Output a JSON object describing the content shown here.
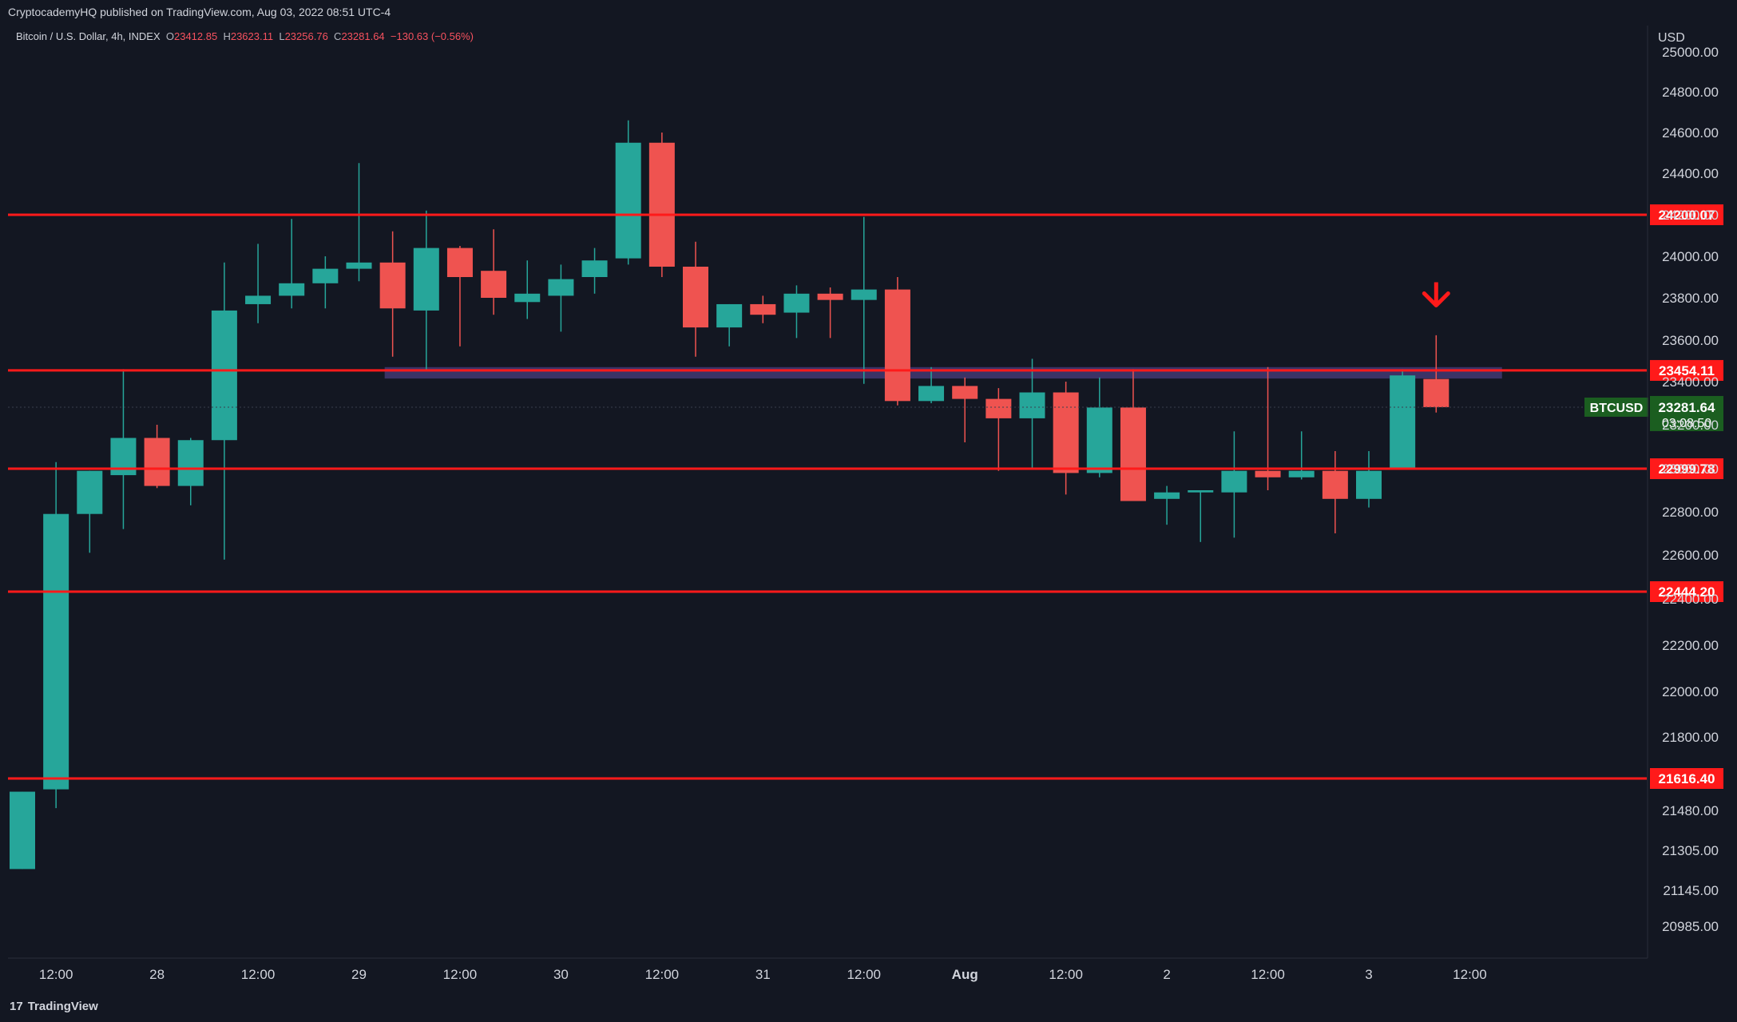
{
  "header": {
    "publisher_line": "CryptocademyHQ published on TradingView.com, Aug 03, 2022 08:51 UTC-4"
  },
  "legend": {
    "symbol": "Bitcoin / U.S. Dollar, 4h, INDEX",
    "o_label": "O",
    "o_value": "23412.85",
    "h_label": "H",
    "h_value": "23623.11",
    "l_label": "L",
    "l_value": "23256.76",
    "c_label": "C",
    "c_value": "23281.64",
    "change": "−130.63 (−0.56%)"
  },
  "footer": {
    "logo_text": "TradingView",
    "logo_glyph": "17"
  },
  "colors": {
    "background": "#131722",
    "up": "#26a69a",
    "down": "#ef5350",
    "level_line": "#ff1a1a",
    "zone": "#5c4a9e",
    "price_badge": "#1b5e20"
  },
  "chart_data": {
    "type": "candlestick",
    "title": "Bitcoin / U.S. Dollar, 4h, INDEX",
    "currency_label": "USD",
    "y_ticks": [
      20985,
      21145,
      21305,
      21480,
      21800,
      22000,
      22200,
      22400,
      22600,
      22800,
      23000,
      23200,
      23400,
      23600,
      23800,
      24000,
      24200,
      24400,
      24600,
      24800,
      25000
    ],
    "y_tick_labels": [
      "20985.00",
      "21145.00",
      "21305.00",
      "21480.00",
      "21800.00",
      "22000.00",
      "22200.00",
      "22400.00",
      "22600.00",
      "22800.00",
      "23000.00",
      "23200.00",
      "23400.00",
      "23600.00",
      "23800.00",
      "24000.00",
      "24200.00",
      "24400.00",
      "24600.00",
      "24800.00",
      "25000.00"
    ],
    "x_labels": [
      {
        "label": "12:00",
        "index": 1
      },
      {
        "label": "28",
        "index": 4
      },
      {
        "label": "12:00",
        "index": 7
      },
      {
        "label": "29",
        "index": 10
      },
      {
        "label": "12:00",
        "index": 13
      },
      {
        "label": "30",
        "index": 16
      },
      {
        "label": "12:00",
        "index": 19
      },
      {
        "label": "31",
        "index": 22
      },
      {
        "label": "12:00",
        "index": 25
      },
      {
        "label": "Aug",
        "index": 28
      },
      {
        "label": "12:00",
        "index": 31
      },
      {
        "label": "2",
        "index": 34
      },
      {
        "label": "12:00",
        "index": 37
      },
      {
        "label": "3",
        "index": 40
      },
      {
        "label": "12:00",
        "index": 43
      }
    ],
    "candles": [
      {
        "o": 21230,
        "h": 21560,
        "l": 21230,
        "c": 21560
      },
      {
        "o": 21570,
        "h": 23030,
        "l": 21490,
        "c": 22790
      },
      {
        "o": 22790,
        "h": 22990,
        "l": 22610,
        "c": 22990
      },
      {
        "o": 22970,
        "h": 23460,
        "l": 22720,
        "c": 23140
      },
      {
        "o": 23140,
        "h": 23200,
        "l": 22910,
        "c": 22920
      },
      {
        "o": 22920,
        "h": 23140,
        "l": 22830,
        "c": 23130
      },
      {
        "o": 23130,
        "h": 23970,
        "l": 22580,
        "c": 23740
      },
      {
        "o": 23770,
        "h": 24060,
        "l": 23680,
        "c": 23810
      },
      {
        "o": 23810,
        "h": 24180,
        "l": 23750,
        "c": 23870
      },
      {
        "o": 23870,
        "h": 24000,
        "l": 23750,
        "c": 23940
      },
      {
        "o": 23940,
        "h": 24450,
        "l": 23880,
        "c": 23970
      },
      {
        "o": 23970,
        "h": 24120,
        "l": 23520,
        "c": 23750
      },
      {
        "o": 23740,
        "h": 24220,
        "l": 23450,
        "c": 24040
      },
      {
        "o": 24040,
        "h": 24050,
        "l": 23570,
        "c": 23900
      },
      {
        "o": 23930,
        "h": 24130,
        "l": 23720,
        "c": 23800
      },
      {
        "o": 23780,
        "h": 23980,
        "l": 23700,
        "c": 23820
      },
      {
        "o": 23810,
        "h": 23960,
        "l": 23640,
        "c": 23890
      },
      {
        "o": 23900,
        "h": 24040,
        "l": 23820,
        "c": 23980
      },
      {
        "o": 23990,
        "h": 24660,
        "l": 23960,
        "c": 24550
      },
      {
        "o": 24550,
        "h": 24600,
        "l": 23900,
        "c": 23950
      },
      {
        "o": 23950,
        "h": 24070,
        "l": 23520,
        "c": 23660
      },
      {
        "o": 23660,
        "h": 23770,
        "l": 23570,
        "c": 23770
      },
      {
        "o": 23770,
        "h": 23810,
        "l": 23680,
        "c": 23720
      },
      {
        "o": 23730,
        "h": 23860,
        "l": 23610,
        "c": 23820
      },
      {
        "o": 23820,
        "h": 23850,
        "l": 23610,
        "c": 23790
      },
      {
        "o": 23790,
        "h": 24190,
        "l": 23390,
        "c": 23840
      },
      {
        "o": 23840,
        "h": 23900,
        "l": 23290,
        "c": 23310
      },
      {
        "o": 23310,
        "h": 23470,
        "l": 23300,
        "c": 23380
      },
      {
        "o": 23380,
        "h": 23420,
        "l": 23120,
        "c": 23320
      },
      {
        "o": 23320,
        "h": 23370,
        "l": 22990,
        "c": 23230
      },
      {
        "o": 23230,
        "h": 23510,
        "l": 23000,
        "c": 23350
      },
      {
        "o": 23350,
        "h": 23400,
        "l": 22880,
        "c": 22980
      },
      {
        "o": 22980,
        "h": 23420,
        "l": 22960,
        "c": 23280
      },
      {
        "o": 23280,
        "h": 23460,
        "l": 22860,
        "c": 22850
      },
      {
        "o": 22860,
        "h": 22920,
        "l": 22740,
        "c": 22890
      },
      {
        "o": 22890,
        "h": 22900,
        "l": 22660,
        "c": 22900
      },
      {
        "o": 22890,
        "h": 23170,
        "l": 22680,
        "c": 22990
      },
      {
        "o": 22990,
        "h": 23470,
        "l": 22900,
        "c": 22960
      },
      {
        "o": 22960,
        "h": 23170,
        "l": 22950,
        "c": 22990
      },
      {
        "o": 22990,
        "h": 23080,
        "l": 22700,
        "c": 22860
      },
      {
        "o": 22860,
        "h": 23080,
        "l": 22820,
        "c": 22990
      },
      {
        "o": 23000,
        "h": 23460,
        "l": 23000,
        "c": 23430
      },
      {
        "o": 23412.85,
        "h": 23623.11,
        "l": 23256.76,
        "c": 23281.64
      }
    ],
    "levels": [
      {
        "value": 24200.07,
        "label": "24200.07"
      },
      {
        "value": 23454.11,
        "label": "23454.11"
      },
      {
        "value": 22999.78,
        "label": "22999.78"
      },
      {
        "value": 22444.2,
        "label": "22444.20"
      },
      {
        "value": 21616.4,
        "label": "21616.40"
      }
    ],
    "zone": {
      "from_index": 11,
      "to_index": 45,
      "low": 23415,
      "high": 23470
    },
    "current_price": {
      "symbol": "BTCUSD",
      "price": "23281.64",
      "countdown": "03:08:50",
      "value": 23281.64
    },
    "arrow": {
      "direction": "down",
      "index": 42,
      "value": 23700
    }
  }
}
